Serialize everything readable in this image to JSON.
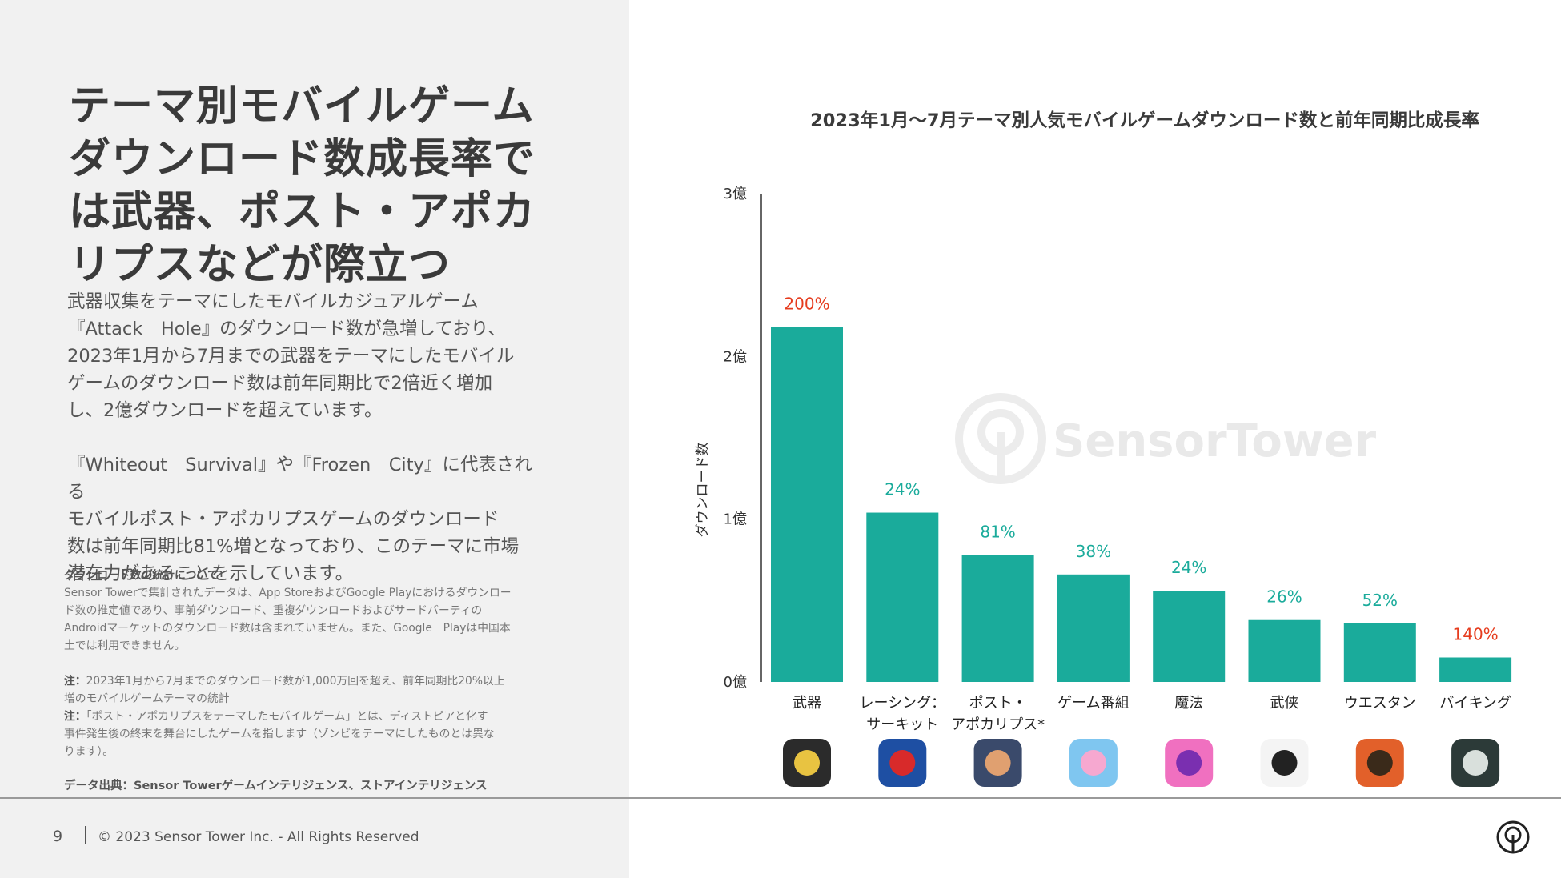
{
  "headline": [
    "テーマ別モバイルゲーム",
    "ダウンロード数成長率で",
    "は武器、ポスト・アポカ",
    "リプスなどが際立つ"
  ],
  "paragraph1": [
    "武器収集をテーマにしたモバイルカジュアルゲーム",
    "『Attack　Hole』のダウンロード数が急増しており、",
    "2023年1月から7月までの武器をテーマにしたモバイル",
    "ゲームのダウンロード数は前年同期比で2倍近く増加",
    "し、2億ダウンロードを超えています。"
  ],
  "paragraph2": [
    "『Whiteout　Survival』や『Frozen　City』に代表される",
    "モバイルポスト・アポカリプスゲームのダウンロード",
    "数は前年同期比81%増となっており、このテーマに市場",
    "潜在力があることを示しています。"
  ],
  "notes": {
    "stats_title": "ダウンロード数の統計について",
    "stats_body": [
      "Sensor Towerで集計されたデータは、App StoreおよびGoogle Playにおけるダウンロー",
      "ド数の推定値であり、事前ダウンロード、重複ダウンロードおよびサードパーティの",
      "Androidマーケットのダウンロード数は含まれていません。また、Google　Playは中国本",
      "土では利用できません。"
    ],
    "note1_label": "注：",
    "note1_body": [
      "2023年1月から7月までのダウンロード数が1,000万回を超え、前年同期比20%以上",
      "増のモバイルゲームテーマの統計"
    ],
    "note2_label": "注：",
    "note2_body": [
      "「ポスト・アポカリプスをテーマしたモバイルゲーム」とは、ディストピアと化す",
      "事件発生後の終末を舞台にしたゲームを指します（ゾンビをテーマにしたものとは異な",
      "ります）。"
    ]
  },
  "source": "データ出典：Sensor Towerゲームインテリジェンス、ストアインテリジェンス",
  "footer": {
    "page": "9",
    "copyright": "© 2023 Sensor Tower Inc. - All Rights Reserved"
  },
  "watermark": "SensorTower",
  "colors": {
    "bar": "#1aab9b",
    "teal_label": "#1aab9b",
    "red_label": "#e63c1e"
  },
  "chart_data": {
    "type": "bar",
    "title": "2023年1月～7月テーマ別人気モバイルゲームダウンロード数と前年同期比成長率",
    "ylabel": "ダウンロード数",
    "xlabel": "",
    "ylim": [
      0,
      3
    ],
    "yticks": [
      {
        "value": 0,
        "label": "0億"
      },
      {
        "value": 1,
        "label": "1億"
      },
      {
        "value": 2,
        "label": "2億"
      },
      {
        "value": 3,
        "label": "3億"
      }
    ],
    "categories": [
      [
        "武器"
      ],
      [
        "レーシング：",
        "サーキット"
      ],
      [
        "ポスト・",
        "アポカリプス*"
      ],
      [
        "ゲーム番組"
      ],
      [
        "魔法"
      ],
      [
        "武侠"
      ],
      [
        "ウエスタン"
      ],
      [
        "バイキング"
      ]
    ],
    "values": [
      2.18,
      1.04,
      0.78,
      0.66,
      0.56,
      0.38,
      0.36,
      0.15
    ],
    "growth_labels": [
      "200%",
      "24%",
      "81%",
      "38%",
      "24%",
      "26%",
      "52%",
      "140%"
    ],
    "label_colors": [
      "red",
      "teal",
      "teal",
      "teal",
      "teal",
      "teal",
      "teal",
      "red"
    ],
    "icons": [
      "weapon-game-icon",
      "racing-game-icon",
      "post-apocalypse-game-icon",
      "game-show-icon",
      "magic-game-icon",
      "wuxia-game-icon",
      "western-game-icon",
      "viking-game-icon"
    ]
  }
}
